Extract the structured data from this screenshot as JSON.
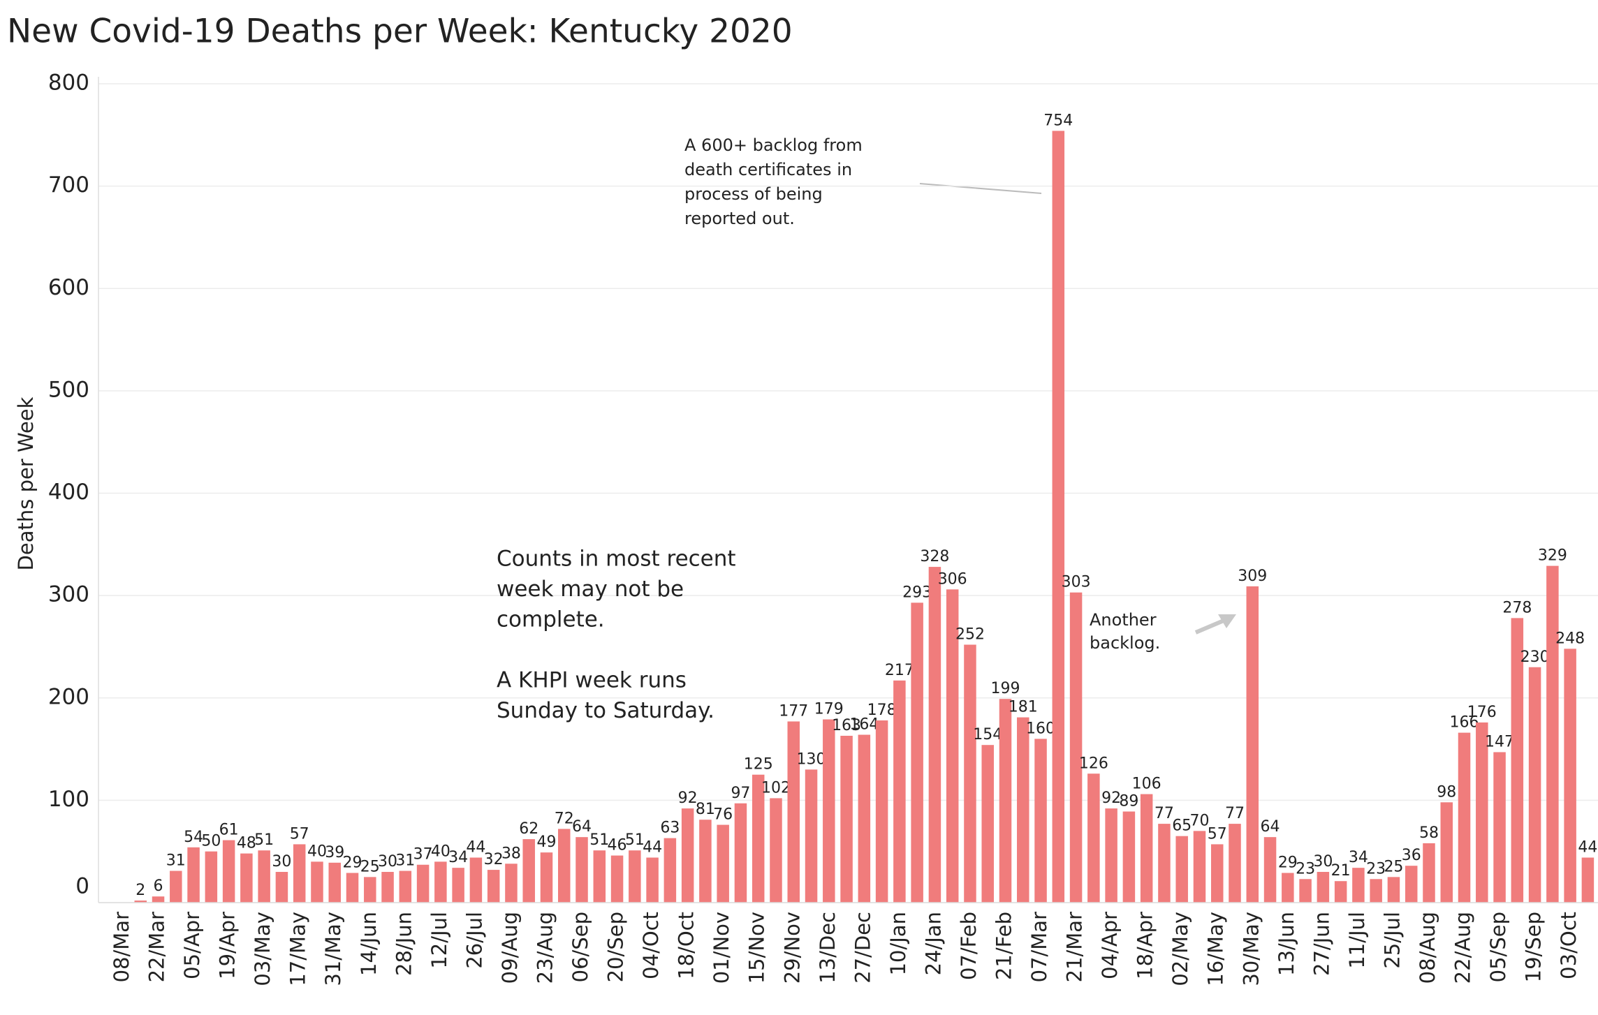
{
  "chart_data": {
    "type": "bar",
    "title": "New Covid-19 Deaths per Week:  Kentucky 2020",
    "ylabel": "Deaths per Week",
    "color": "#f07c7c",
    "grid": true,
    "ylim": [
      0,
      800
    ],
    "yticks": [
      0,
      100,
      200,
      300,
      400,
      500,
      600,
      700,
      800
    ],
    "categories": [
      "08/Mar",
      null,
      "22/Mar",
      null,
      "05/Apr",
      null,
      "19/Apr",
      null,
      "03/May",
      null,
      "17/May",
      null,
      "31/May",
      null,
      "14/Jun",
      null,
      "28/Jun",
      null,
      "12/Jul",
      null,
      "26/Jul",
      null,
      "09/Aug",
      null,
      "23/Aug",
      null,
      "06/Sep",
      null,
      "20/Sep",
      null,
      "04/Oct",
      null,
      "18/Oct",
      null,
      "01/Nov",
      null,
      "15/Nov",
      null,
      "29/Nov",
      null,
      "13/Dec",
      null,
      "27/Dec",
      null,
      "10/Jan",
      null,
      "24/Jan",
      null,
      "07/Feb",
      null,
      "21/Feb",
      null,
      "07/Mar",
      null,
      "21/Mar",
      null,
      "04/Apr",
      null,
      "18/Apr",
      null,
      "02/May",
      null,
      "16/May",
      null,
      "30/May",
      null,
      "13/Jun",
      null,
      "27/Jun",
      null,
      "11/Jul",
      null,
      "25/Jul",
      null,
      "08/Aug",
      null,
      "22/Aug",
      null,
      "05/Sep",
      null,
      "19/Sep",
      null,
      "03/Oct",
      null
    ],
    "values": [
      null,
      2,
      6,
      31,
      54,
      50,
      61,
      48,
      51,
      30,
      57,
      40,
      39,
      29,
      25,
      30,
      31,
      37,
      40,
      34,
      44,
      32,
      38,
      62,
      49,
      72,
      64,
      51,
      46,
      51,
      44,
      63,
      92,
      81,
      76,
      97,
      125,
      102,
      177,
      130,
      179,
      163,
      164,
      178,
      217,
      293,
      328,
      306,
      252,
      154,
      199,
      181,
      160,
      754,
      303,
      126,
      92,
      89,
      106,
      77,
      65,
      70,
      57,
      77,
      309,
      64,
      29,
      23,
      30,
      21,
      34,
      23,
      25,
      36,
      58,
      98,
      166,
      176,
      147,
      278,
      230,
      329,
      248,
      44
    ],
    "annotations": [
      {
        "lines": [
          "A 600+ backlog from",
          "death certificates in",
          "process of  being",
          "reported out."
        ]
      },
      {
        "lines": [
          "Counts in most recent",
          "week may not be",
          "complete.",
          "",
          "A KHPI week runs",
          "Sunday to Saturday."
        ]
      },
      {
        "lines": [
          "Another",
          "backlog."
        ]
      }
    ]
  }
}
